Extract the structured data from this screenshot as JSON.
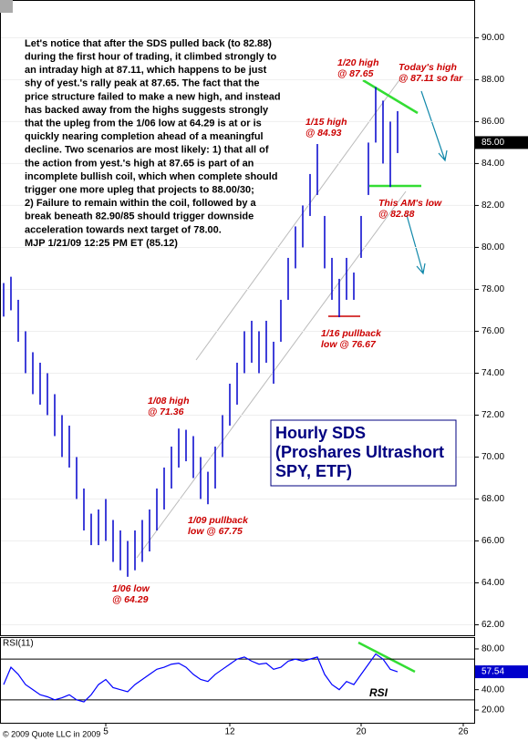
{
  "chart_data": [
    {
      "type": "ohlc",
      "title": [
        "Hourly SDS",
        "(Proshares Ultrashort",
        "SPY, ETF)"
      ],
      "commentary": [
        "Let's notice that after the SDS pulled back (to 82.88)",
        "during the first hour of trading, it climbed strongly to",
        "an intraday high at 87.11, which happens to be just",
        "shy of yest.'s rally peak at 87.65. The fact that the",
        "price structure failed to make a new high, and instead",
        "has backed away from the highs suggests strongly",
        "that the upleg from the 1/06 low at 64.29 is at or is",
        "quickly nearing completion ahead of a meaningful",
        "decline.  Two scenarios are most likely: 1) that all of",
        "the action from yest.'s high at 87.65 is part of an",
        "incomplete bullish coil, which when complete should",
        "trigger one more upleg that projects to 88.00/30;",
        "2) Failure to remain within the coil, followed by a",
        "break beneath 82.90/85 should trigger downside",
        "acceleration towards next target of 78.00.",
        "MJP  1/21/09 12:25 PM ET (85.12)"
      ],
      "annotations": [
        [
          "1/20 high",
          "@ 87.65"
        ],
        [
          "Today's high",
          "@ 87.11 so far"
        ],
        [
          "1/15 high",
          "@ 84.93"
        ],
        [
          "This AM's low",
          "@ 82.88"
        ],
        [
          "1/16 pullback",
          "low @ 76.67"
        ],
        [
          "1/08 high",
          "@ 71.36"
        ],
        [
          "1/09 pullback",
          "low @ 67.75"
        ],
        [
          "1/06 low",
          "@ 64.29"
        ]
      ],
      "categories": [
        null,
        null,
        null,
        null,
        null,
        null,
        null,
        null,
        null,
        null,
        null,
        null,
        null,
        null,
        "5",
        null,
        null,
        null,
        null,
        null,
        null,
        null,
        null,
        null,
        null,
        null,
        null,
        null,
        null,
        null,
        null,
        "12",
        null,
        null,
        null,
        null,
        null,
        null,
        null,
        null,
        null,
        null,
        null,
        null,
        null,
        null,
        null,
        null,
        null,
        "20",
        null,
        null,
        null,
        null,
        null,
        null,
        null,
        null,
        null,
        null,
        null,
        null,
        null,
        "26",
        null
      ],
      "high": [
        78.3,
        78.6,
        77.5,
        76,
        75,
        74.5,
        74,
        73,
        72,
        71.5,
        70,
        68.5,
        67.3,
        67.5,
        68,
        67,
        66.5,
        66,
        66.5,
        67,
        67.5,
        68.5,
        69.5,
        70.5,
        71.36,
        71.3,
        71,
        70,
        69.3,
        70.5,
        72,
        73.5,
        74.5,
        76,
        76.5,
        76,
        76.5,
        75.5,
        77.5,
        79.5,
        81,
        82,
        83.5,
        84.93,
        81.5,
        79.5,
        78.5,
        79.5,
        78.8,
        81.5,
        85,
        87.65,
        87,
        86,
        86.5,
        null,
        null,
        null,
        null,
        null,
        null,
        null,
        null,
        null,
        null
      ],
      "low": [
        76.7,
        77,
        75.5,
        74,
        73,
        72.5,
        72,
        71,
        70,
        69.5,
        68,
        66.5,
        65.8,
        65.8,
        66,
        65,
        64.6,
        64.29,
        64.6,
        65,
        65.5,
        66.5,
        67.5,
        68.5,
        69.5,
        69.8,
        69,
        68,
        67.75,
        68.5,
        70,
        71.5,
        72.5,
        74,
        74.5,
        74,
        74.5,
        73.5,
        75.5,
        77.5,
        79,
        80,
        81.5,
        82.5,
        79,
        77.5,
        76.67,
        77.5,
        77.5,
        79.5,
        82.5,
        85,
        84,
        82.88,
        84.5,
        null,
        null,
        null,
        null,
        null,
        null,
        null,
        null,
        null,
        null
      ],
      "color": "#0000cc",
      "ylim": [
        61.5,
        91.8
      ],
      "yticks": [
        {
          "value": 62,
          "label": "62.00"
        },
        {
          "value": 64,
          "label": "64.00"
        },
        {
          "value": 66,
          "label": "66.00"
        },
        {
          "value": 68,
          "label": "68.00"
        },
        {
          "value": 70,
          "label": "70.00"
        },
        {
          "value": 72,
          "label": "72.00"
        },
        {
          "value": 74,
          "label": "74.00"
        },
        {
          "value": 76,
          "label": "76.00"
        },
        {
          "value": 78,
          "label": "78.00"
        },
        {
          "value": 80,
          "label": "80.00"
        },
        {
          "value": 82,
          "label": "82.00"
        },
        {
          "value": 84,
          "label": "84.00"
        },
        {
          "value": 86,
          "label": "86.00"
        },
        {
          "value": 88,
          "label": "88.00"
        },
        {
          "value": 90,
          "label": "90.00"
        }
      ],
      "last_value": {
        "value": 85,
        "label": "85.00"
      },
      "footer": "© 2009 Quote LLC in 2009",
      "grid": true
    },
    {
      "type": "line",
      "title": "RSI(11)",
      "annotation": "RSI",
      "values": [
        45,
        62,
        55,
        45,
        40,
        35,
        33,
        30,
        32,
        35,
        30,
        28,
        35,
        45,
        50,
        42,
        40,
        38,
        45,
        50,
        55,
        60,
        62,
        65,
        66,
        62,
        55,
        50,
        48,
        55,
        60,
        65,
        70,
        72,
        68,
        65,
        66,
        60,
        62,
        68,
        70,
        68,
        70,
        72,
        55,
        45,
        40,
        48,
        45,
        55,
        65,
        75,
        70,
        60,
        57.54,
        null,
        null,
        null,
        null,
        null,
        null,
        null,
        null,
        null,
        null
      ],
      "color": "#0000ff",
      "ylim": [
        7.5,
        90.7
      ],
      "yticks": [
        {
          "value": 20,
          "label": "20.00"
        },
        {
          "value": 40,
          "label": "40.00"
        },
        {
          "value": 60,
          "label": "60.00"
        },
        {
          "value": 80,
          "label": "80.00"
        }
      ],
      "bands": [
        30,
        70
      ],
      "last_value": {
        "value": 57.54,
        "label": "57.54"
      }
    }
  ]
}
